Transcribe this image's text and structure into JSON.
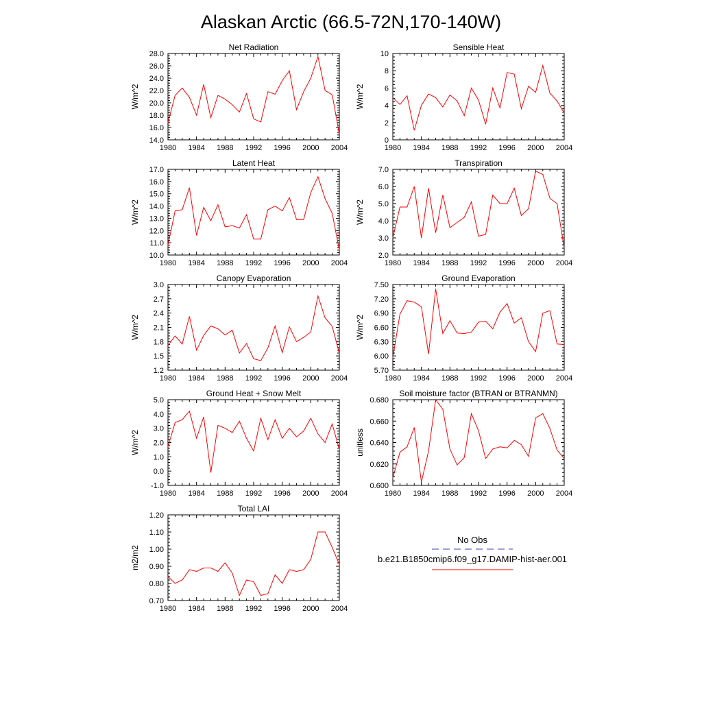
{
  "figure": {
    "title": "Alaskan Arctic (66.5-72N,170-140W)"
  },
  "legend": {
    "entries": [
      {
        "label": "No Obs",
        "color": "#3b3bb3",
        "dash": true
      },
      {
        "label": "b.e21.B1850cmip6.f09_g17.DAMIP-hist-aer.001",
        "color": "#ff0000",
        "dash": false
      }
    ]
  },
  "chart_data": [
    {
      "type": "line",
      "title": "Net Radiation",
      "ylabel": "W/m^2",
      "xlabel": "",
      "xlim": [
        1980,
        2004
      ],
      "ylim": [
        14,
        28
      ],
      "yticks": [
        "14.0",
        "16.0",
        "18.0",
        "20.0",
        "22.0",
        "24.0",
        "26.0",
        "28.0"
      ],
      "xticks": [
        "1980",
        "1984",
        "1988",
        "1992",
        "1996",
        "2000",
        "2004"
      ],
      "series": [
        {
          "color": "#ff0000",
          "x": [
            1980,
            1981,
            1982,
            1983,
            1984,
            1985,
            1986,
            1987,
            1988,
            1989,
            1990,
            1991,
            1992,
            1993,
            1994,
            1995,
            1996,
            1997,
            1998,
            1999,
            2000,
            2001,
            2002,
            2003,
            2004
          ],
          "values": [
            16.8,
            21.2,
            22.4,
            20.9,
            18.0,
            23.0,
            17.6,
            21.2,
            20.6,
            19.7,
            18.5,
            21.5,
            17.4,
            16.9,
            21.8,
            21.4,
            23.6,
            25.2,
            18.9,
            21.8,
            24.0,
            27.5,
            22.0,
            21.3,
            14.9
          ]
        }
      ]
    },
    {
      "type": "line",
      "title": "Sensible Heat",
      "ylabel": "W/m^2",
      "xlabel": "",
      "xlim": [
        1980,
        2004
      ],
      "ylim": [
        0,
        10
      ],
      "yticks": [
        "0",
        "2",
        "4",
        "6",
        "8",
        "10"
      ],
      "xticks": [
        "1980",
        "1984",
        "1988",
        "1992",
        "1996",
        "2000",
        "2004"
      ],
      "series": [
        {
          "color": "#ff0000",
          "x": [
            1980,
            1981,
            1982,
            1983,
            1984,
            1985,
            1986,
            1987,
            1988,
            1989,
            1990,
            1991,
            1992,
            1993,
            1994,
            1995,
            1996,
            1997,
            1998,
            1999,
            2000,
            2001,
            2002,
            2003,
            2004
          ],
          "values": [
            4.9,
            4.1,
            5.1,
            1.1,
            4.0,
            5.3,
            4.9,
            3.8,
            5.2,
            4.5,
            2.8,
            6.0,
            4.6,
            1.8,
            6.0,
            3.7,
            7.8,
            7.6,
            3.6,
            6.2,
            5.5,
            8.6,
            5.4,
            4.5,
            3.1
          ]
        }
      ]
    },
    {
      "type": "line",
      "title": "Latent Heat",
      "ylabel": "W/m^2",
      "xlabel": "",
      "xlim": [
        1980,
        2004
      ],
      "ylim": [
        10,
        17
      ],
      "yticks": [
        "10.0",
        "11.0",
        "12.0",
        "13.0",
        "14.0",
        "15.0",
        "16.0",
        "17.0"
      ],
      "xticks": [
        "1980",
        "1984",
        "1988",
        "1992",
        "1996",
        "2000",
        "2004"
      ],
      "series": [
        {
          "color": "#ff0000",
          "x": [
            1980,
            1981,
            1982,
            1983,
            1984,
            1985,
            1986,
            1987,
            1988,
            1989,
            1990,
            1991,
            1992,
            1993,
            1994,
            1995,
            1996,
            1997,
            1998,
            1999,
            2000,
            2001,
            2002,
            2003,
            2004
          ],
          "values": [
            10.8,
            13.6,
            13.7,
            15.5,
            11.6,
            13.9,
            12.8,
            14.1,
            12.3,
            12.4,
            12.2,
            13.3,
            11.3,
            11.3,
            13.7,
            14.0,
            13.6,
            14.7,
            12.9,
            12.9,
            15.1,
            16.4,
            14.6,
            13.4,
            10.4
          ]
        }
      ]
    },
    {
      "type": "line",
      "title": "Transpiration",
      "ylabel": "W/m^2",
      "xlabel": "",
      "xlim": [
        1980,
        2004
      ],
      "ylim": [
        2,
        7
      ],
      "yticks": [
        "2.0",
        "3.0",
        "4.0",
        "5.0",
        "6.0",
        "7.0"
      ],
      "xticks": [
        "1980",
        "1984",
        "1988",
        "1992",
        "1996",
        "2000",
        "2004"
      ],
      "series": [
        {
          "color": "#ff0000",
          "x": [
            1980,
            1981,
            1982,
            1983,
            1984,
            1985,
            1986,
            1987,
            1988,
            1989,
            1990,
            1991,
            1992,
            1993,
            1994,
            1995,
            1996,
            1997,
            1998,
            1999,
            2000,
            2001,
            2002,
            2003,
            2004
          ],
          "values": [
            3.0,
            4.8,
            4.8,
            6.0,
            3.0,
            5.9,
            3.3,
            5.5,
            3.6,
            3.9,
            4.2,
            5.1,
            3.1,
            3.2,
            5.5,
            5.0,
            5.0,
            5.9,
            4.3,
            4.7,
            6.9,
            6.7,
            5.3,
            5.0,
            2.4
          ]
        }
      ]
    },
    {
      "type": "line",
      "title": "Canopy Evaporation",
      "ylabel": "W/m^2",
      "xlabel": "",
      "xlim": [
        1980,
        2004
      ],
      "ylim": [
        1.2,
        3.0
      ],
      "yticks": [
        "1.2",
        "1.5",
        "1.8",
        "2.1",
        "2.4",
        "2.7",
        "3.0"
      ],
      "xticks": [
        "1980",
        "1984",
        "1988",
        "1992",
        "1996",
        "2000",
        "2004"
      ],
      "series": [
        {
          "color": "#ff0000",
          "x": [
            1980,
            1981,
            1982,
            1983,
            1984,
            1985,
            1986,
            1987,
            1988,
            1989,
            1990,
            1991,
            1992,
            1993,
            1994,
            1995,
            1996,
            1997,
            1998,
            1999,
            2000,
            2001,
            2002,
            2003,
            2004
          ],
          "values": [
            1.72,
            1.92,
            1.75,
            2.33,
            1.62,
            1.93,
            2.13,
            2.07,
            1.94,
            2.04,
            1.56,
            1.76,
            1.44,
            1.4,
            1.67,
            2.13,
            1.57,
            2.11,
            1.8,
            1.89,
            2.0,
            2.76,
            2.3,
            2.12,
            1.55
          ]
        }
      ]
    },
    {
      "type": "line",
      "title": "Ground Evaporation",
      "ylabel": "W/m^2",
      "xlabel": "",
      "xlim": [
        1980,
        2004
      ],
      "ylim": [
        5.7,
        7.5
      ],
      "yticks": [
        "5.70",
        "6.00",
        "6.30",
        "6.60",
        "6.90",
        "7.20",
        "7.50"
      ],
      "xticks": [
        "1980",
        "1984",
        "1988",
        "1992",
        "1996",
        "2000",
        "2004"
      ],
      "series": [
        {
          "color": "#ff0000",
          "x": [
            1980,
            1981,
            1982,
            1983,
            1984,
            1985,
            1986,
            1987,
            1988,
            1989,
            1990,
            1991,
            1992,
            1993,
            1994,
            1995,
            1996,
            1997,
            1998,
            1999,
            2000,
            2001,
            2002,
            2003,
            2004
          ],
          "values": [
            5.96,
            6.88,
            7.16,
            7.13,
            7.03,
            6.04,
            7.41,
            6.47,
            6.74,
            6.48,
            6.47,
            6.5,
            6.71,
            6.73,
            6.57,
            6.92,
            7.1,
            6.69,
            6.8,
            6.3,
            6.09,
            6.9,
            6.95,
            6.25,
            6.24
          ]
        }
      ]
    },
    {
      "type": "line",
      "title": "Ground Heat + Snow Melt",
      "ylabel": "W/m^2",
      "xlabel": "",
      "xlim": [
        1980,
        2004
      ],
      "ylim": [
        -1,
        5
      ],
      "yticks": [
        "-1.0",
        "0.0",
        "1.0",
        "2.0",
        "3.0",
        "4.0",
        "5.0"
      ],
      "xticks": [
        "1980",
        "1984",
        "1988",
        "1992",
        "1996",
        "2000",
        "2004"
      ],
      "series": [
        {
          "color": "#ff0000",
          "x": [
            1980,
            1981,
            1982,
            1983,
            1984,
            1985,
            1986,
            1987,
            1988,
            1989,
            1990,
            1991,
            1992,
            1993,
            1994,
            1995,
            1996,
            1997,
            1998,
            1999,
            2000,
            2001,
            2002,
            2003,
            2004
          ],
          "values": [
            1.7,
            3.4,
            3.6,
            4.2,
            2.3,
            3.8,
            -0.1,
            3.2,
            3.0,
            2.7,
            3.5,
            2.3,
            1.4,
            3.7,
            2.2,
            3.6,
            2.3,
            3.0,
            2.4,
            2.8,
            3.7,
            2.6,
            2.0,
            3.3,
            1.5
          ]
        }
      ]
    },
    {
      "type": "line",
      "title": "Soil moisture factor (BTRAN or BTRANMN)",
      "ylabel": "unitless",
      "xlabel": "",
      "xlim": [
        1980,
        2004
      ],
      "ylim": [
        0.6,
        0.68
      ],
      "yticks": [
        "0.600",
        "0.620",
        "0.640",
        "0.660",
        "0.680"
      ],
      "xticks": [
        "1980",
        "1984",
        "1988",
        "1992",
        "1996",
        "2000",
        "2004"
      ],
      "series": [
        {
          "color": "#ff0000",
          "x": [
            1980,
            1981,
            1982,
            1983,
            1984,
            1985,
            1986,
            1987,
            1988,
            1989,
            1990,
            1991,
            1992,
            1993,
            1994,
            1995,
            1996,
            1997,
            1998,
            1999,
            2000,
            2001,
            2002,
            2003,
            2004
          ],
          "values": [
            0.607,
            0.631,
            0.636,
            0.654,
            0.603,
            0.632,
            0.68,
            0.671,
            0.634,
            0.619,
            0.626,
            0.667,
            0.651,
            0.625,
            0.634,
            0.636,
            0.635,
            0.642,
            0.638,
            0.627,
            0.663,
            0.667,
            0.653,
            0.633,
            0.625
          ]
        }
      ]
    },
    {
      "type": "line",
      "title": "Total LAI",
      "ylabel": "m2/m2",
      "xlabel": "",
      "xlim": [
        1980,
        2004
      ],
      "ylim": [
        0.7,
        1.2
      ],
      "yticks": [
        "0.70",
        "0.80",
        "0.90",
        "1.00",
        "1.10",
        "1.20"
      ],
      "xticks": [
        "1980",
        "1984",
        "1988",
        "1992",
        "1996",
        "2000",
        "2004"
      ],
      "series": [
        {
          "color": "#ff0000",
          "x": [
            1980,
            1981,
            1982,
            1983,
            1984,
            1985,
            1986,
            1987,
            1988,
            1989,
            1990,
            1991,
            1992,
            1993,
            1994,
            1995,
            1996,
            1997,
            1998,
            1999,
            2000,
            2001,
            2002,
            2003,
            2004
          ],
          "values": [
            0.84,
            0.8,
            0.82,
            0.88,
            0.87,
            0.89,
            0.89,
            0.87,
            0.92,
            0.86,
            0.73,
            0.82,
            0.81,
            0.73,
            0.74,
            0.85,
            0.8,
            0.88,
            0.87,
            0.88,
            0.94,
            1.1,
            1.1,
            1.01,
            0.91
          ]
        }
      ]
    }
  ]
}
